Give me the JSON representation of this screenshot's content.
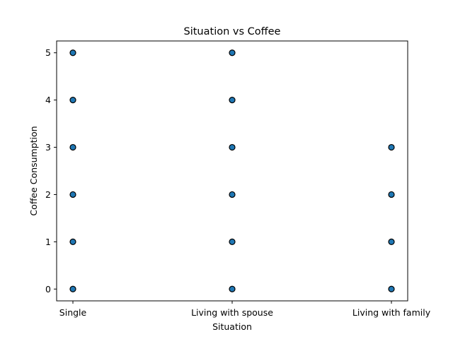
{
  "chart_data": {
    "type": "scatter",
    "title": "Situation vs Coffee",
    "xlabel": "Situation",
    "ylabel": "Coffee Consumption",
    "categories": [
      "Single",
      "Living with spouse",
      "Living with family"
    ],
    "y_ticks": [
      "0",
      "1",
      "2",
      "3",
      "4",
      "5"
    ],
    "ylim": [
      -0.25,
      5.25
    ],
    "grid": false,
    "legend": "none",
    "marker_color": "#1f77b4",
    "marker_edge_color": "#000000",
    "points": [
      {
        "x": "Single",
        "y": 0
      },
      {
        "x": "Single",
        "y": 1
      },
      {
        "x": "Single",
        "y": 2
      },
      {
        "x": "Single",
        "y": 3
      },
      {
        "x": "Single",
        "y": 4
      },
      {
        "x": "Single",
        "y": 5
      },
      {
        "x": "Living with spouse",
        "y": 0
      },
      {
        "x": "Living with spouse",
        "y": 1
      },
      {
        "x": "Living with spouse",
        "y": 2
      },
      {
        "x": "Living with spouse",
        "y": 3
      },
      {
        "x": "Living with spouse",
        "y": 4
      },
      {
        "x": "Living with spouse",
        "y": 5
      },
      {
        "x": "Living with family",
        "y": 0
      },
      {
        "x": "Living with family",
        "y": 1
      },
      {
        "x": "Living with family",
        "y": 2
      },
      {
        "x": "Living with family",
        "y": 3
      }
    ]
  }
}
